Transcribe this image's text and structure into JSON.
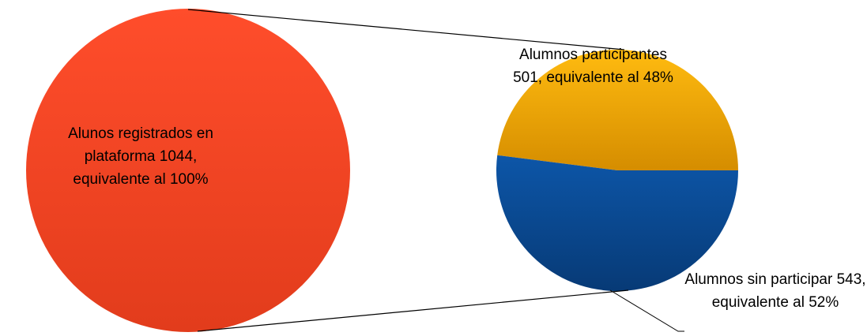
{
  "chart_data": {
    "type": "pie-of-pie",
    "primary": {
      "values": [
        100
      ],
      "value_labels": [
        "Alunos registrados en plataforma 1044, equivalente al 100%"
      ],
      "colors": [
        "#f24a25"
      ]
    },
    "secondary": {
      "values": [
        48,
        52
      ],
      "value_labels": [
        "Alumnos participantes 501, equivalente al 48%",
        "Alumnos sin participar  543, equivalente al 52%"
      ],
      "colors": [
        "#f0ad00",
        "#0b4c98"
      ]
    }
  }
}
